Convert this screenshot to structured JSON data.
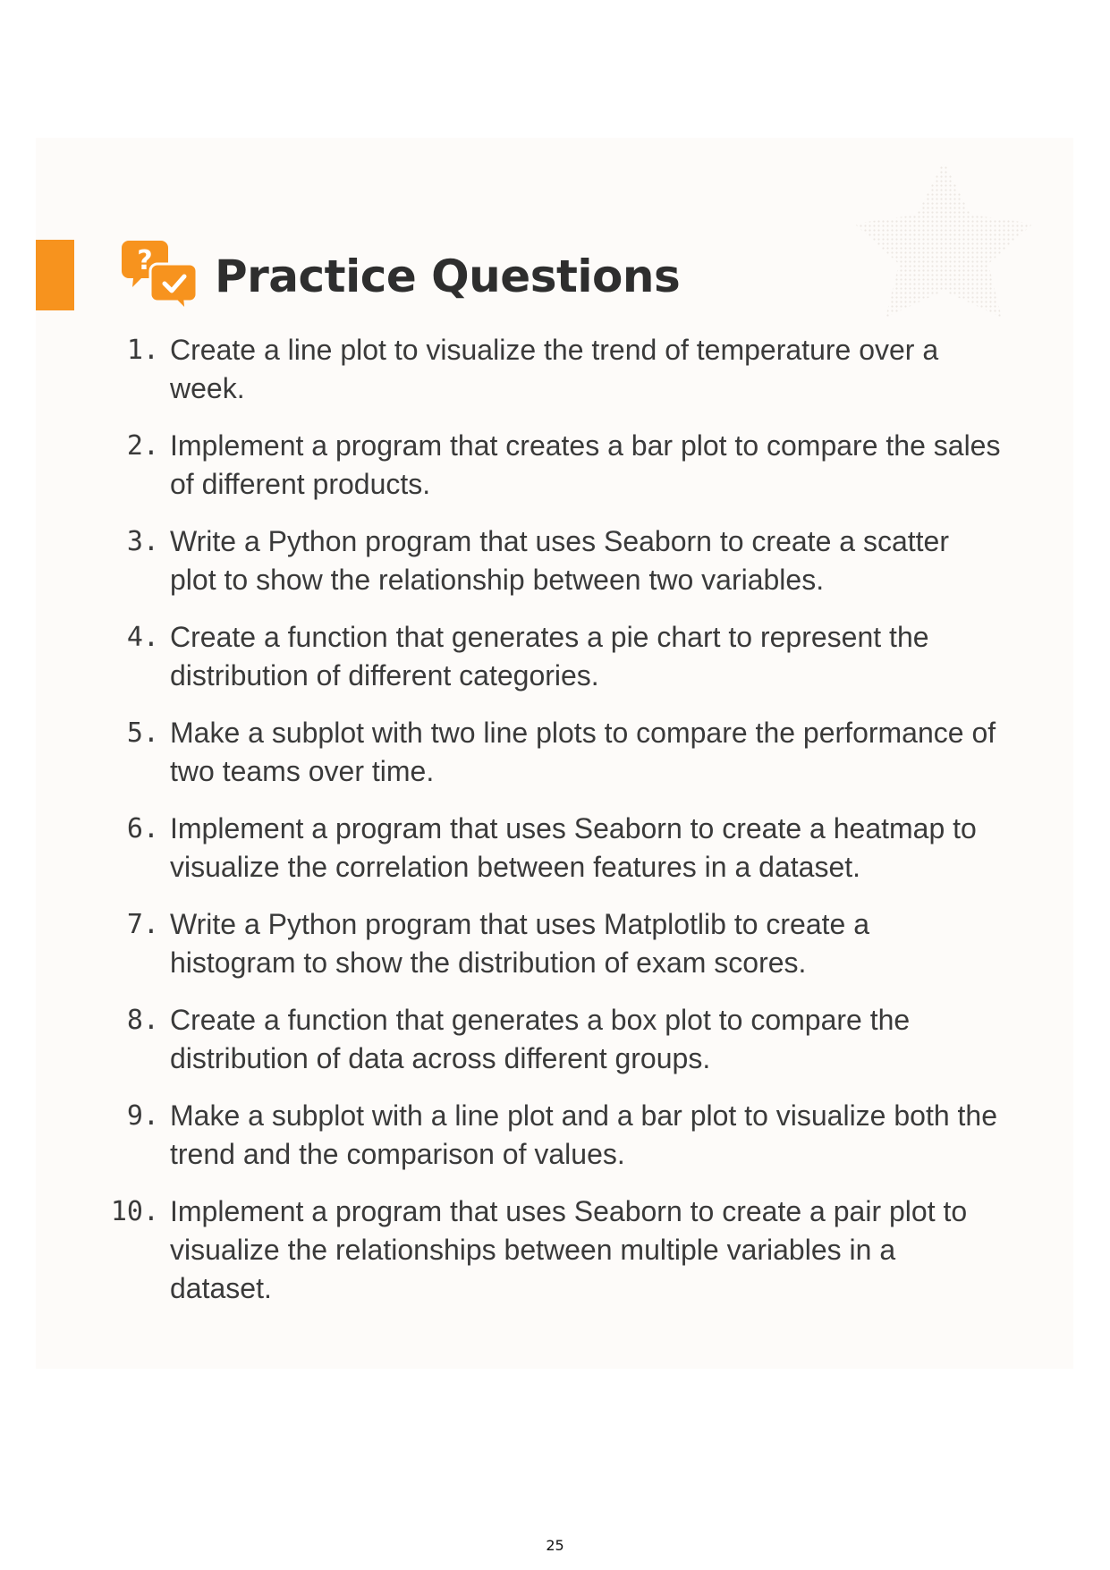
{
  "header": {
    "title": "Practice Questions",
    "icon": "question-answer-chat-icon",
    "accent_color": "#f7931e"
  },
  "questions": [
    {
      "number": "1.",
      "text": "Create a line plot to visualize the trend of temperature over a week."
    },
    {
      "number": "2.",
      "text": "Implement a program that creates a bar plot to compare the sales of different products."
    },
    {
      "number": "3.",
      "text": "Write a Python program that uses Seaborn to create a scatter plot to show the relationship between two variables."
    },
    {
      "number": "4.",
      "text": "Create a function that generates a pie chart to represent the distribution of different categories."
    },
    {
      "number": "5.",
      "text": "Make a subplot with two line plots to compare the performance of two teams over time."
    },
    {
      "number": "6.",
      "text": "Implement a program that uses Seaborn to create a heatmap to visualize the correlation between features in a dataset."
    },
    {
      "number": "7.",
      "text": "Write a Python program that uses Matplotlib to create a histogram to show the distribution of exam scores."
    },
    {
      "number": "8.",
      "text": "Create a function that generates a box plot to compare the distribution of data across different groups."
    },
    {
      "number": "9.",
      "text": "Make a subplot with a line plot and a bar plot to visualize both the trend and the comparison of values."
    },
    {
      "number": "10.",
      "text": "Implement a program that uses Seaborn to create a pair plot to visualize the relationships between multiple variables in a dataset."
    }
  ],
  "footer": {
    "page_number": "25"
  }
}
